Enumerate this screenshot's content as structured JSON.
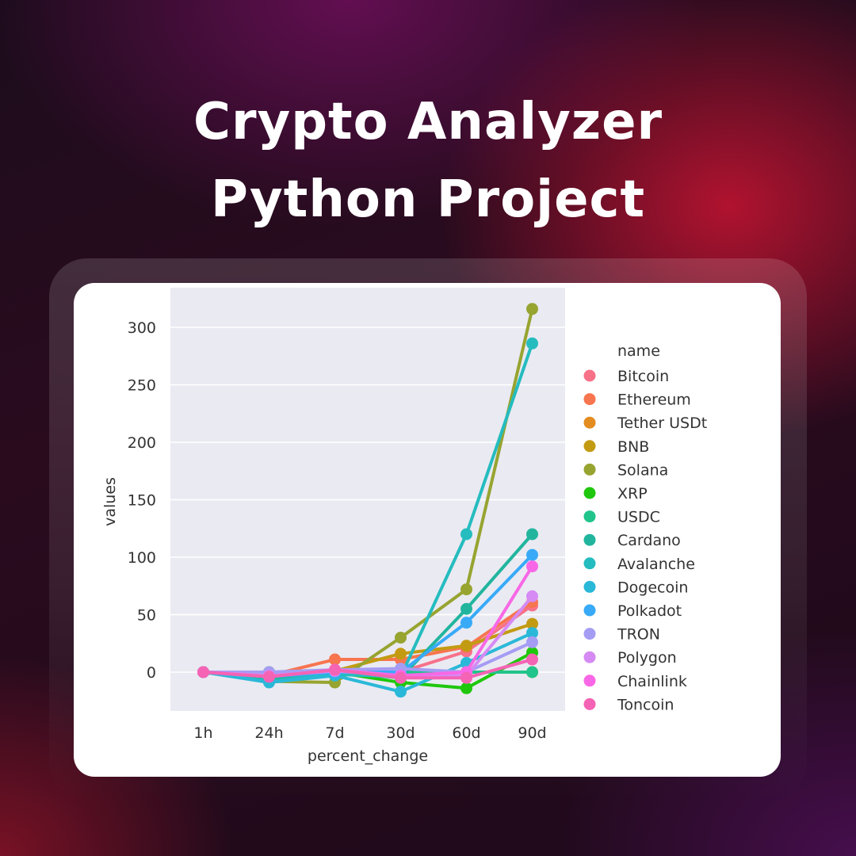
{
  "header": {
    "title_line1": "Crypto Analyzer",
    "title_line2": "Python Project"
  },
  "theme": {
    "plot_bg": "#eaeaf2",
    "grid": "#ffffff",
    "tick_text": "#333333"
  },
  "chart_data": {
    "type": "line",
    "title": "",
    "xlabel": "percent_change",
    "ylabel": "values",
    "categories": [
      "1h",
      "24h",
      "7d",
      "30d",
      "60d",
      "90d"
    ],
    "yticks": [
      0,
      50,
      100,
      150,
      200,
      250,
      300
    ],
    "ylim": [
      -33,
      330
    ],
    "grid": true,
    "legend_title": "name",
    "legend_position": "right",
    "series": [
      {
        "name": "Bitcoin",
        "color": "#f77189",
        "values": [
          0,
          -4,
          1,
          0,
          18,
          58
        ]
      },
      {
        "name": "Ethereum",
        "color": "#f7754f",
        "values": [
          0,
          -3,
          11,
          11,
          22,
          61
        ]
      },
      {
        "name": "Tether USDt",
        "color": "#e38c1f",
        "values": [
          0,
          0,
          0,
          0,
          0,
          0
        ]
      },
      {
        "name": "BNB",
        "color": "#c39b12",
        "values": [
          0,
          -5,
          1,
          16,
          23,
          42
        ]
      },
      {
        "name": "Solana",
        "color": "#97a430",
        "values": [
          0,
          -8,
          -9,
          30,
          72,
          316
        ]
      },
      {
        "name": "XRP",
        "color": "#1fc70c",
        "values": [
          0,
          -6,
          0,
          -9,
          -14,
          17
        ]
      },
      {
        "name": "USDC",
        "color": "#21c48a",
        "values": [
          0,
          0,
          0,
          0,
          0,
          0
        ]
      },
      {
        "name": "Cardano",
        "color": "#22b59e",
        "values": [
          0,
          -5,
          0,
          -5,
          55,
          120
        ]
      },
      {
        "name": "Avalanche",
        "color": "#25bcbf",
        "values": [
          0,
          -8,
          -2,
          -4,
          120,
          286
        ]
      },
      {
        "name": "Dogecoin",
        "color": "#2ab8d8",
        "values": [
          0,
          -9,
          -3,
          -17,
          8,
          34
        ]
      },
      {
        "name": "Polkadot",
        "color": "#38aaf8",
        "values": [
          0,
          -4,
          0,
          0,
          43,
          102
        ]
      },
      {
        "name": "TRON",
        "color": "#a59cf4",
        "values": [
          0,
          0,
          2,
          3,
          0,
          26
        ]
      },
      {
        "name": "Polygon",
        "color": "#d58af4",
        "values": [
          0,
          -3,
          1,
          -3,
          -3,
          66
        ]
      },
      {
        "name": "Chainlink",
        "color": "#f868e6",
        "values": [
          0,
          -4,
          2,
          -3,
          0,
          92
        ]
      },
      {
        "name": "Toncoin",
        "color": "#f563b4",
        "values": [
          0,
          -4,
          2,
          -5,
          -5,
          11
        ]
      }
    ]
  }
}
